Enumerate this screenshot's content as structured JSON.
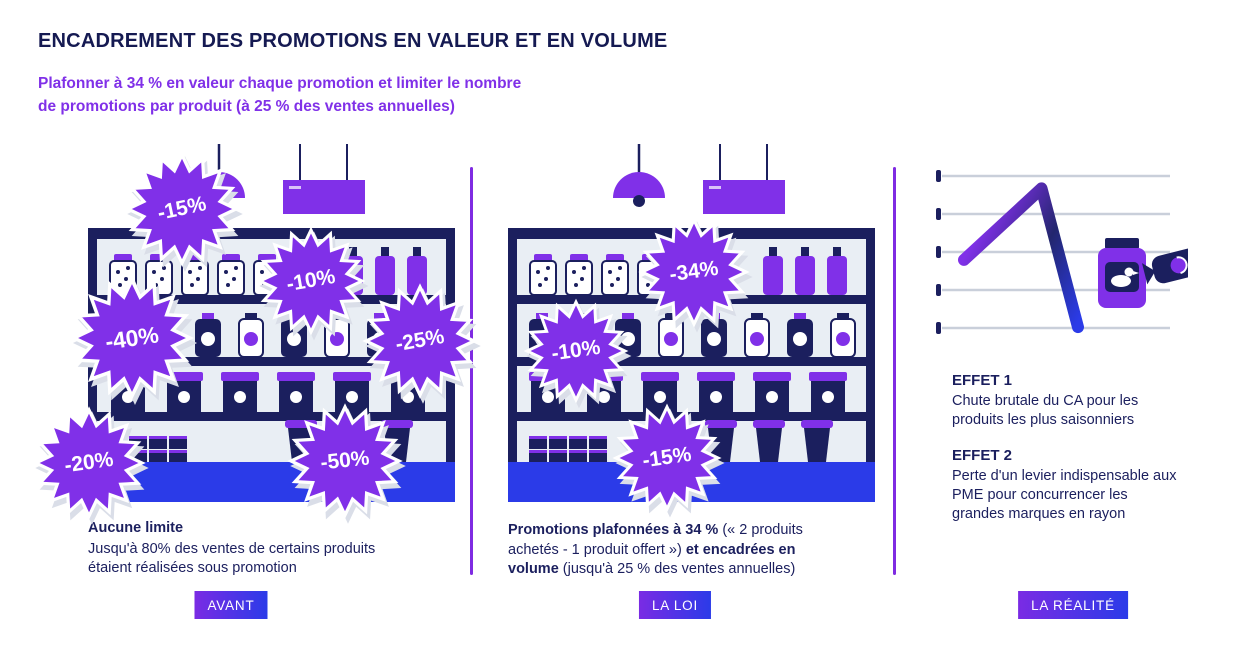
{
  "header": {
    "title": "ENCADREMENT DES PROMOTIONS EN VALEUR ET EN VOLUME",
    "subtitle_line1": "Plafonner à 34 % en valeur chaque promotion et limiter le nombre",
    "subtitle_line2": "de promotions par produit (à 25 % des ventes annuelles)"
  },
  "colors": {
    "navy": "#1b1f5e",
    "purple": "#8030e8",
    "blue": "#2b3be8",
    "shelf_grey": "#e9eef4",
    "grid_grey": "#c9cfda"
  },
  "icons": {
    "lamp": "pendant-lamp-icon",
    "sign": "hanging-sign-icon",
    "jar": "foie-gras-jar-icon",
    "candy": "candy-wrapper-icon"
  },
  "panels": {
    "avant": {
      "bursts": [
        {
          "label": "-15%"
        },
        {
          "label": "-10%"
        },
        {
          "label": "-40%"
        },
        {
          "label": "-25%"
        },
        {
          "label": "-20%"
        },
        {
          "label": "-50%"
        }
      ],
      "caption_title": "Aucune limite",
      "caption_body": "Jusqu'à 80% des ventes de certains produits étaient réalisées sous promotion",
      "button_label": "AVANT"
    },
    "loi": {
      "bursts": [
        {
          "label": "-34%"
        },
        {
          "label": "-10%"
        },
        {
          "label": "-15%"
        }
      ],
      "caption": [
        {
          "text": "Promotions plafonnées à 34 % ",
          "bold": true
        },
        {
          "text": "(« 2 produits achetés - 1 produit offert ») ",
          "bold": false
        },
        {
          "text": "et encadrées en volume ",
          "bold": true
        },
        {
          "text": "(jusqu'à 25 % des ventes annuelles)",
          "bold": false
        }
      ],
      "button_label": "LA LOI"
    },
    "realite": {
      "chart": {
        "type": "line",
        "points_norm": [
          [
            0,
            0.48
          ],
          [
            0.68,
            0.97
          ],
          [
            1,
            0.02
          ]
        ]
      },
      "effects": [
        {
          "title": "EFFET 1",
          "body": "Chute brutale du CA pour les produits les plus saisonniers"
        },
        {
          "title": "EFFET 2",
          "body": "Perte d'un levier indispensable aux PME pour concurrencer les grandes marques en rayon"
        }
      ],
      "button_label": "LA RÉALITÉ"
    }
  }
}
